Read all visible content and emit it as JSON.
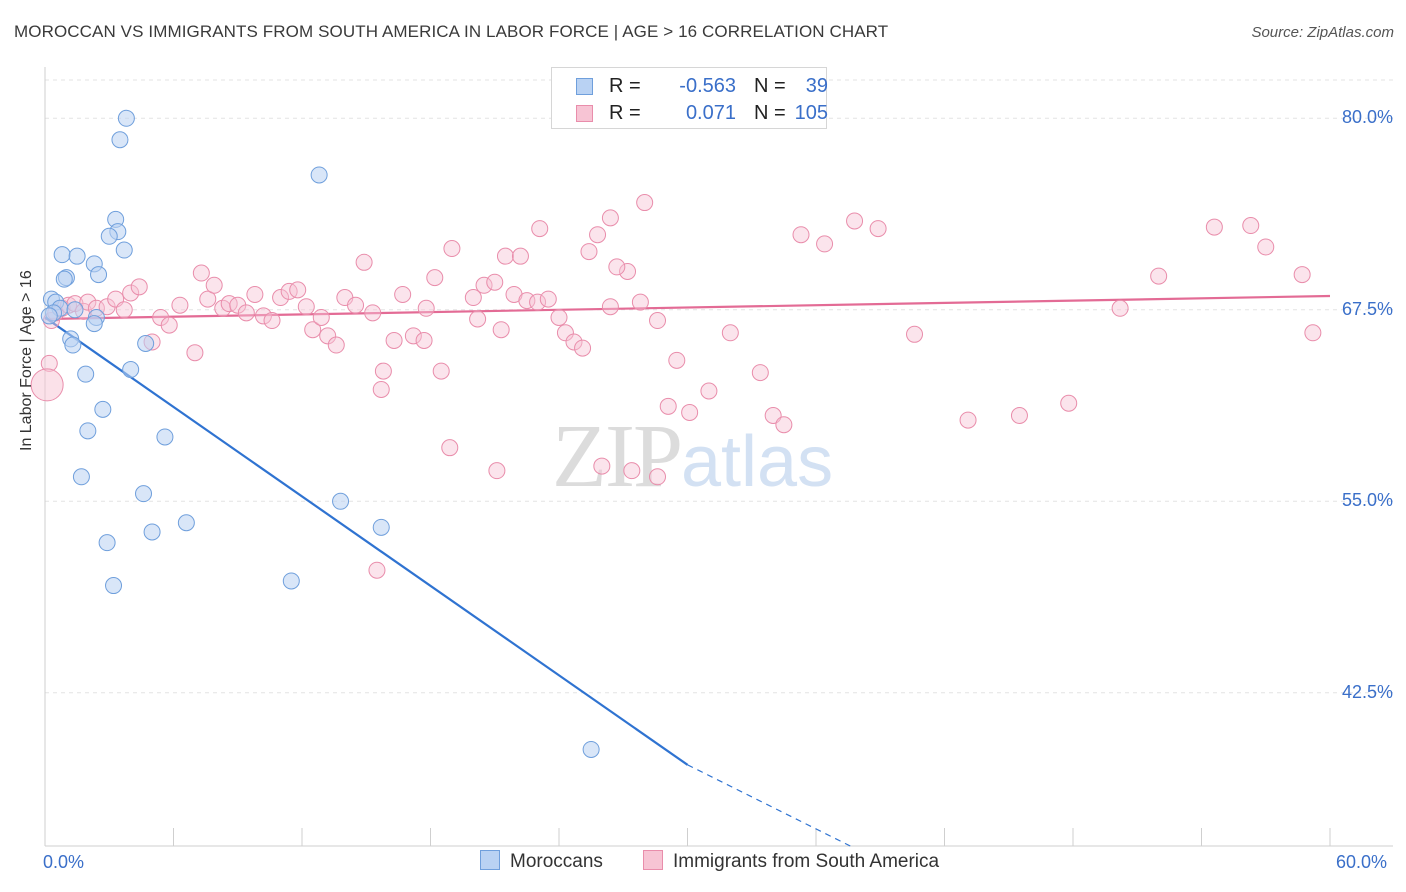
{
  "title": "MOROCCAN VS IMMIGRANTS FROM SOUTH AMERICA IN LABOR FORCE | AGE > 16 CORRELATION CHART",
  "source": "Source: ZipAtlas.com",
  "watermark": {
    "zip": "ZIP",
    "atlas": "atlas"
  },
  "legend": {
    "rows": [
      {
        "r_label": "R =",
        "r_value": "-0.563",
        "n_label": "N =",
        "n_value": "39"
      },
      {
        "r_label": "R =",
        "r_value": "0.071",
        "n_label": "N =",
        "n_value": "105"
      }
    ]
  },
  "bottom_legend": {
    "moroccans": "Moroccans",
    "immigrants": "Immigrants from South America"
  },
  "colors": {
    "blue_fill": "#b9d2f3",
    "blue_stroke": "#6f9fdc",
    "blue_line": "#2f73d1",
    "pink_fill": "#f7c4d4",
    "pink_stroke": "#e98dab",
    "pink_line": "#e36b95",
    "grid": "#e3e3e3",
    "tick_text": "#3a6fc9"
  },
  "chart_data": {
    "type": "scatter",
    "title": "MOROCCAN VS IMMIGRANTS FROM SOUTH AMERICA IN LABOR FORCE | AGE > 16 CORRELATION CHART",
    "xlabel": "",
    "ylabel": "In Labor Force | Age > 16",
    "xlim": [
      0,
      60
    ],
    "ylim": [
      32.5,
      82.5
    ],
    "x_tick_labels": [
      "0.0%",
      "60.0%"
    ],
    "y_ticks": [
      42.5,
      55.0,
      67.5,
      80.0
    ],
    "y_tick_labels": [
      "42.5%",
      "55.0%",
      "67.5%",
      "80.0%"
    ],
    "grid": true,
    "legend_position": "top-center",
    "series": [
      {
        "name": "Moroccans",
        "color": "#6f9fdc",
        "r": -0.563,
        "n": 39,
        "trend": {
          "x": [
            0,
            30
          ],
          "y": [
            67.0,
            37.8
          ],
          "dashed_x": [
            30,
            37.6
          ],
          "dashed_y": [
            37.8,
            32.5
          ]
        },
        "points": [
          [
            3.8,
            80.0
          ],
          [
            3.5,
            78.6
          ],
          [
            12.8,
            76.3
          ],
          [
            3.3,
            73.4
          ],
          [
            3.4,
            72.6
          ],
          [
            3.0,
            72.3
          ],
          [
            3.7,
            71.4
          ],
          [
            0.8,
            71.1
          ],
          [
            1.5,
            71.0
          ],
          [
            2.3,
            70.5
          ],
          [
            2.5,
            69.8
          ],
          [
            1.0,
            69.6
          ],
          [
            0.9,
            69.5
          ],
          [
            0.3,
            68.2
          ],
          [
            0.5,
            68.0
          ],
          [
            0.7,
            67.6
          ],
          [
            1.4,
            67.5
          ],
          [
            0.4,
            67.3
          ],
          [
            0.2,
            67.1
          ],
          [
            2.4,
            67.0
          ],
          [
            2.3,
            66.6
          ],
          [
            1.2,
            65.6
          ],
          [
            1.3,
            65.2
          ],
          [
            4.7,
            65.3
          ],
          [
            4.0,
            63.6
          ],
          [
            1.9,
            63.3
          ],
          [
            2.7,
            61.0
          ],
          [
            2.0,
            59.6
          ],
          [
            5.6,
            59.2
          ],
          [
            1.7,
            56.6
          ],
          [
            4.6,
            55.5
          ],
          [
            13.8,
            55.0
          ],
          [
            6.6,
            53.6
          ],
          [
            5.0,
            53.0
          ],
          [
            15.7,
            53.3
          ],
          [
            2.9,
            52.3
          ],
          [
            11.5,
            49.8
          ],
          [
            3.2,
            49.5
          ],
          [
            25.5,
            38.8
          ]
        ]
      },
      {
        "name": "Immigrants from South America",
        "color": "#e98dab",
        "r": 0.071,
        "n": 105,
        "trend": {
          "x": [
            0,
            60
          ],
          "y": [
            66.9,
            68.4
          ]
        },
        "points": [
          [
            0.2,
            64.0
          ],
          [
            0.3,
            66.8
          ],
          [
            0.5,
            67.3
          ],
          [
            0.8,
            67.6
          ],
          [
            1.1,
            67.8
          ],
          [
            1.4,
            67.9
          ],
          [
            1.8,
            67.4
          ],
          [
            2.0,
            68.0
          ],
          [
            2.4,
            67.6
          ],
          [
            2.9,
            67.7
          ],
          [
            3.3,
            68.2
          ],
          [
            3.7,
            67.5
          ],
          [
            4.0,
            68.6
          ],
          [
            4.4,
            69.0
          ],
          [
            5.0,
            65.4
          ],
          [
            5.4,
            67.0
          ],
          [
            5.8,
            66.5
          ],
          [
            6.3,
            67.8
          ],
          [
            7.0,
            64.7
          ],
          [
            7.3,
            69.9
          ],
          [
            7.6,
            68.2
          ],
          [
            7.9,
            69.1
          ],
          [
            8.3,
            67.6
          ],
          [
            8.6,
            67.9
          ],
          [
            9.0,
            67.8
          ],
          [
            9.4,
            67.3
          ],
          [
            9.8,
            68.5
          ],
          [
            10.2,
            67.1
          ],
          [
            10.6,
            66.8
          ],
          [
            11.0,
            68.3
          ],
          [
            11.4,
            68.7
          ],
          [
            11.8,
            68.8
          ],
          [
            12.2,
            67.7
          ],
          [
            12.5,
            66.2
          ],
          [
            12.9,
            67.0
          ],
          [
            13.2,
            65.8
          ],
          [
            13.6,
            65.2
          ],
          [
            14.0,
            68.3
          ],
          [
            14.5,
            67.8
          ],
          [
            14.9,
            70.6
          ],
          [
            15.3,
            67.3
          ],
          [
            15.8,
            63.5
          ],
          [
            16.3,
            65.5
          ],
          [
            16.7,
            68.5
          ],
          [
            17.2,
            65.8
          ],
          [
            17.8,
            67.6
          ],
          [
            18.2,
            69.6
          ],
          [
            18.5,
            63.5
          ],
          [
            19.0,
            71.5
          ],
          [
            20.0,
            68.3
          ],
          [
            20.5,
            69.1
          ],
          [
            21.0,
            69.3
          ],
          [
            21.5,
            71.0
          ],
          [
            21.9,
            68.5
          ],
          [
            22.2,
            71.0
          ],
          [
            22.5,
            68.1
          ],
          [
            23.0,
            68.0
          ],
          [
            23.5,
            68.2
          ],
          [
            24.0,
            67.0
          ],
          [
            24.3,
            66.0
          ],
          [
            24.7,
            65.4
          ],
          [
            25.1,
            65.0
          ],
          [
            25.4,
            71.3
          ],
          [
            25.8,
            72.4
          ],
          [
            26.4,
            73.5
          ],
          [
            27.2,
            70.0
          ],
          [
            28.0,
            74.5
          ],
          [
            28.6,
            66.8
          ],
          [
            29.1,
            61.2
          ],
          [
            29.5,
            64.2
          ],
          [
            30.1,
            60.8
          ],
          [
            31.0,
            62.2
          ],
          [
            32.0,
            66.0
          ],
          [
            33.4,
            63.4
          ],
          [
            34.0,
            60.6
          ],
          [
            34.5,
            60.0
          ],
          [
            35.3,
            72.4
          ],
          [
            36.4,
            71.8
          ],
          [
            37.8,
            73.3
          ],
          [
            38.9,
            72.8
          ],
          [
            40.6,
            65.9
          ],
          [
            43.1,
            60.3
          ],
          [
            45.5,
            60.6
          ],
          [
            47.8,
            61.4
          ],
          [
            50.2,
            67.6
          ],
          [
            52.0,
            69.7
          ],
          [
            54.6,
            72.9
          ],
          [
            56.3,
            73.0
          ],
          [
            57.0,
            71.6
          ],
          [
            58.7,
            69.8
          ],
          [
            59.2,
            66.0
          ],
          [
            20.2,
            66.9
          ],
          [
            21.3,
            66.2
          ],
          [
            26.7,
            70.3
          ],
          [
            23.1,
            72.8
          ],
          [
            26.4,
            67.7
          ],
          [
            15.7,
            62.3
          ],
          [
            18.9,
            58.5
          ],
          [
            26.0,
            57.3
          ],
          [
            27.4,
            57.0
          ],
          [
            28.6,
            56.6
          ],
          [
            21.1,
            57.0
          ],
          [
            15.5,
            50.5
          ],
          [
            17.7,
            65.5
          ],
          [
            27.8,
            68.0
          ]
        ]
      }
    ]
  }
}
